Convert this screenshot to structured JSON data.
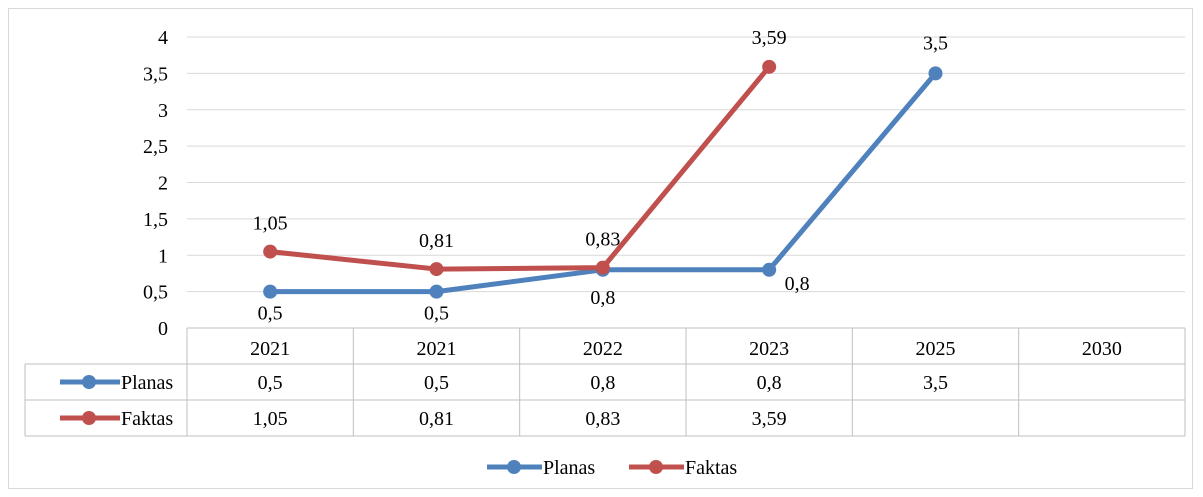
{
  "chart_data": {
    "type": "line",
    "categories": [
      "2021",
      "2021",
      "2022",
      "2023",
      "2025",
      "2030"
    ],
    "series": [
      {
        "name": "Planas",
        "values": [
          0.5,
          0.5,
          0.8,
          0.8,
          3.5,
          null
        ],
        "labels": [
          "0,5",
          "0,5",
          "0,8",
          "0,8",
          "3,5",
          ""
        ],
        "color": "#4f81bd"
      },
      {
        "name": "Faktas",
        "values": [
          1.05,
          0.81,
          0.83,
          3.59,
          null,
          null
        ],
        "labels": [
          "1,05",
          "0,81",
          "0,83",
          "3,59",
          "",
          ""
        ],
        "color": "#c0504d"
      }
    ],
    "yticks": [
      "0",
      "0,5",
      "1",
      "1,5",
      "2",
      "2,5",
      "3",
      "3,5",
      "4"
    ],
    "ylim": [
      0,
      4
    ],
    "grid": true,
    "data_table": true,
    "legend_position": "bottom"
  }
}
